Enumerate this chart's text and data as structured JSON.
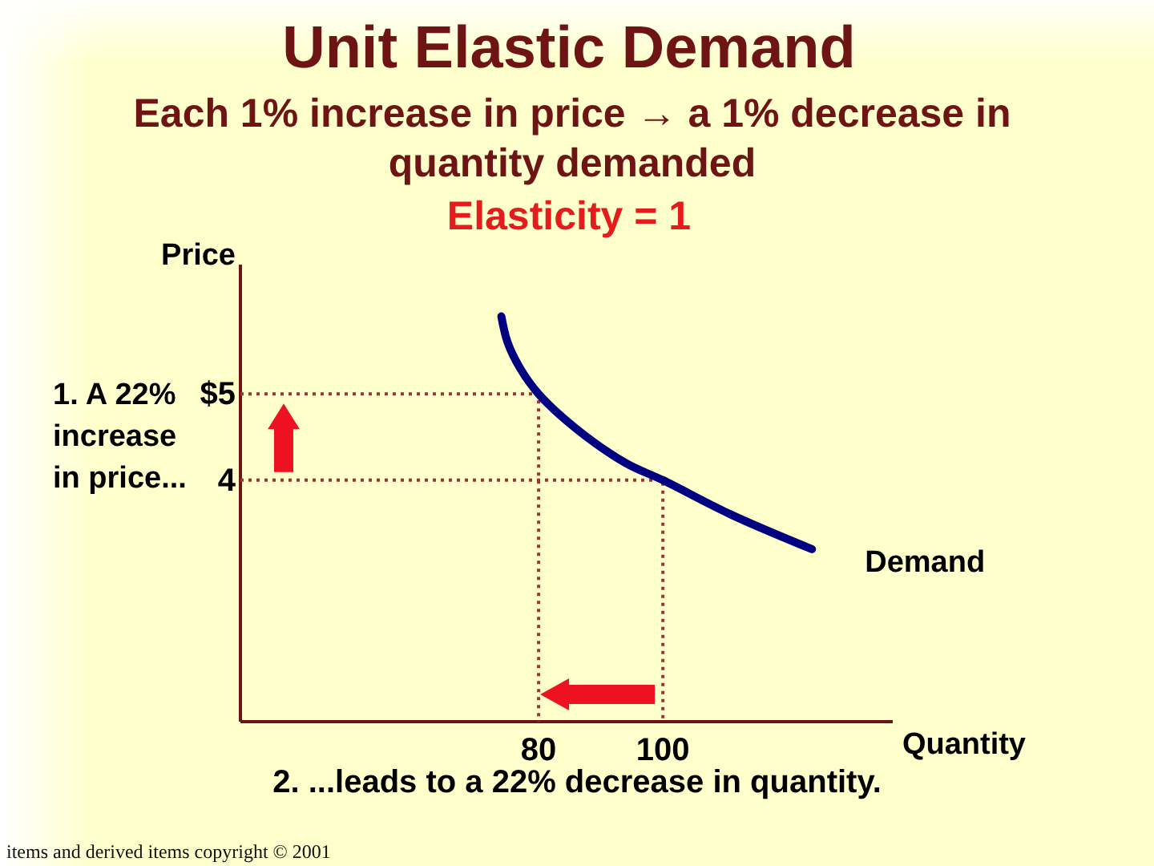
{
  "chart_data": {
    "type": "line",
    "title": "Unit Elastic Demand",
    "subtitle": "Each 1% increase in price → a 1% decrease in quantity demanded",
    "xlabel": "Quantity",
    "ylabel": "Price",
    "annotations": [
      "Elasticity = 1",
      "1. A 22% increase in price...",
      "2. ...leads to a 22% decrease in quantity.",
      "items and derived items copyright © 2001"
    ],
    "xlim": [
      32,
      137
    ],
    "ylim": [
      1.2,
      6.5
    ],
    "xticks": [
      80,
      100
    ],
    "yticks": [
      {
        "value": 5,
        "label": "$5"
      },
      4
    ],
    "series": [
      {
        "name": "Demand",
        "color": "#000080",
        "x": [
          74,
          75,
          77,
          80,
          86,
          94,
          100,
          111,
          124
        ],
        "values": [
          5.9,
          5.6,
          5.3,
          5,
          4.6,
          4.2,
          4,
          3.6,
          3.2
        ]
      },
      {
        "color": "#9b3535",
        "line_style": "dotted",
        "x": [
          32,
          80,
          80
        ],
        "values": [
          5,
          5,
          1.2
        ]
      },
      {
        "color": "#9b3535",
        "line_style": "dotted",
        "x": [
          32,
          100,
          100
        ],
        "values": [
          4,
          4,
          1.2
        ]
      }
    ]
  }
}
